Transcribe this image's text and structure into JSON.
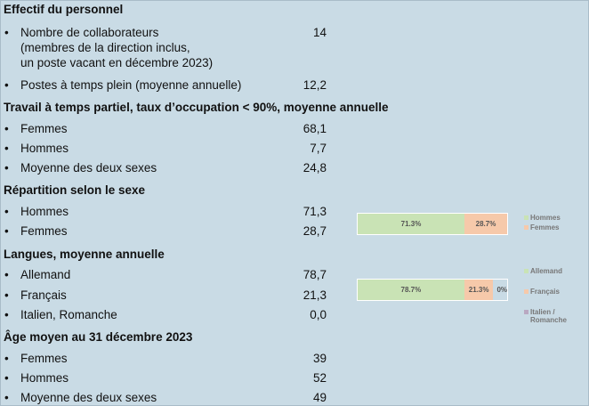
{
  "colors": {
    "background": "#c9dbe5",
    "green": "#c9e3b5",
    "peach": "#f6c9aa",
    "mauve": "#b9a8c1"
  },
  "bullet": "•",
  "effectif": {
    "title": "Effectif du personnel",
    "rows": [
      {
        "label": "Nombre de collaborateurs",
        "label2": "(membres de la direction inclus,",
        "label3": "un poste vacant en décembre 2023)",
        "value": "14"
      },
      {
        "label": "Postes à temps plein (moyenne annuelle)",
        "value": "12,2"
      }
    ]
  },
  "partiel": {
    "title": "Travail à temps partiel, taux d’occupation < 90%, moyenne annuelle",
    "rows": [
      {
        "label": "Femmes",
        "value": "68,1"
      },
      {
        "label": "Hommes",
        "value": "7,7"
      },
      {
        "label": "Moyenne des deux sexes",
        "value": "24,8"
      }
    ]
  },
  "sexe": {
    "title": "Répartition selon le sexe",
    "rows": [
      {
        "label": "Hommes",
        "value": "71,3"
      },
      {
        "label": "Femmes",
        "value": "28,7"
      }
    ]
  },
  "langues": {
    "title": "Langues, moyenne annuelle",
    "rows": [
      {
        "label": "Allemand",
        "value": "78,7"
      },
      {
        "label": "Français",
        "value": "21,3"
      },
      {
        "label": "Italien, Romanche",
        "value": "0,0"
      }
    ]
  },
  "age": {
    "title": "Âge moyen au 31 décembre 2023",
    "rows": [
      {
        "label": "Femmes",
        "value": "39"
      },
      {
        "label": "Hommes",
        "value": "52"
      },
      {
        "label": "Moyenne des deux sexes",
        "value": "49"
      }
    ]
  },
  "chart_data": [
    {
      "type": "bar",
      "stacked": true,
      "orientation": "horizontal",
      "series": [
        {
          "name": "Hommes",
          "values": [
            71.3
          ],
          "label": "71.3%",
          "color": "#c9e3b5"
        },
        {
          "name": "Femmes",
          "values": [
            28.7
          ],
          "label": "28.7%",
          "color": "#f6c9aa"
        }
      ],
      "legend_position": "right"
    },
    {
      "type": "bar",
      "stacked": true,
      "orientation": "horizontal",
      "series": [
        {
          "name": "Allemand",
          "values": [
            78.7
          ],
          "label": "78.7%",
          "color": "#c9e3b5"
        },
        {
          "name": "Français",
          "values": [
            21.3
          ],
          "label": "21.3%",
          "color": "#f6c9aa"
        },
        {
          "name": "Italien / Romanche",
          "values": [
            0
          ],
          "label": "0%",
          "color": "#b9a8c1"
        }
      ],
      "legend_position": "right"
    }
  ]
}
